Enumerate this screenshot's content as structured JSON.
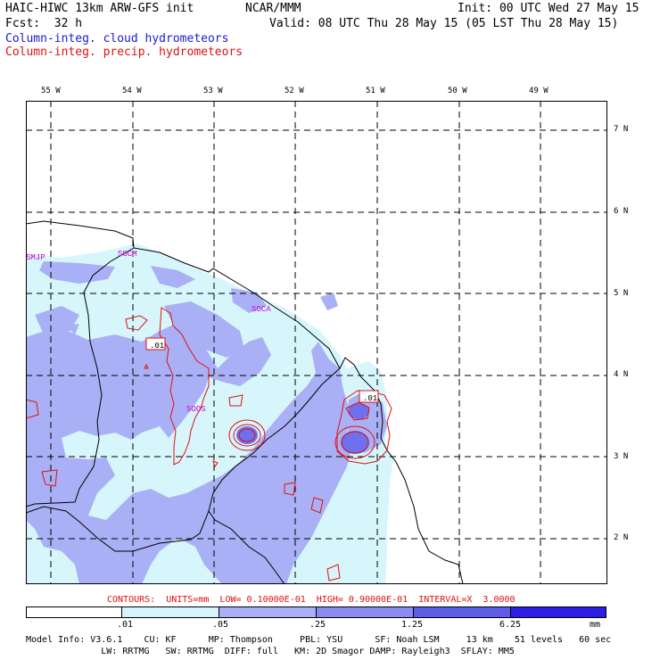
{
  "header": {
    "title_left": "HAIC-HIWC 13km ARW-GFS init",
    "title_org": "NCAR/MMM",
    "init": "Init: 00 UTC Wed 27 May 15",
    "fcst": "Fcst:  32 h",
    "valid": "Valid: 08 UTC Thu 28 May 15 (05 LST Thu 28 May 15)",
    "field_cloud": "Column-integ. cloud hydrometeors",
    "field_precip": "Column-integ. precip. hydrometeors"
  },
  "map": {
    "lon_labels": [
      "55 W",
      "54 W",
      "53 W",
      "52 W",
      "51 W",
      "50 W",
      "49 W"
    ],
    "lat_labels": [
      "7 N",
      "6 N",
      "5 N",
      "4 N",
      "3 N",
      "2 N"
    ],
    "stations": [
      "SMJP",
      "SOCM",
      "SOCA",
      "SOOS"
    ],
    "contour_labels": [
      ".01",
      ".01"
    ],
    "colors": {
      "lightcyan": "#d6f6fb",
      "lavender": "#aab0f5",
      "mediumblue": "#6f70ee",
      "boundary": "#000000",
      "contour": "#e01010"
    }
  },
  "contours_text": "CONTOURS:  UNITS=mm  LOW= 0.10000E-01  HIGH= 0.90000E-01  INTERVAL=X  3.0000",
  "colorbar": {
    "ticks": [
      ".01",
      ".05",
      ".25",
      "1.25",
      "6.25"
    ],
    "units": "mm",
    "colors": [
      "#ffffff",
      "#d6f6fb",
      "#aab0f5",
      "#8a8cf0",
      "#5d5ceb",
      "#2a1ee6"
    ]
  },
  "model_info": {
    "line1": "Model Info: V3.6.1    CU: KF      MP: Thompson     PBL: YSU      SF: Noah LSM     13 km    51 levels   60 sec",
    "line2": "              LW: RRTMG   SW: RRTMG  DIFF: full   KM: 2D Smagor DAMP: Rayleigh3  SFLAY: MM5"
  }
}
